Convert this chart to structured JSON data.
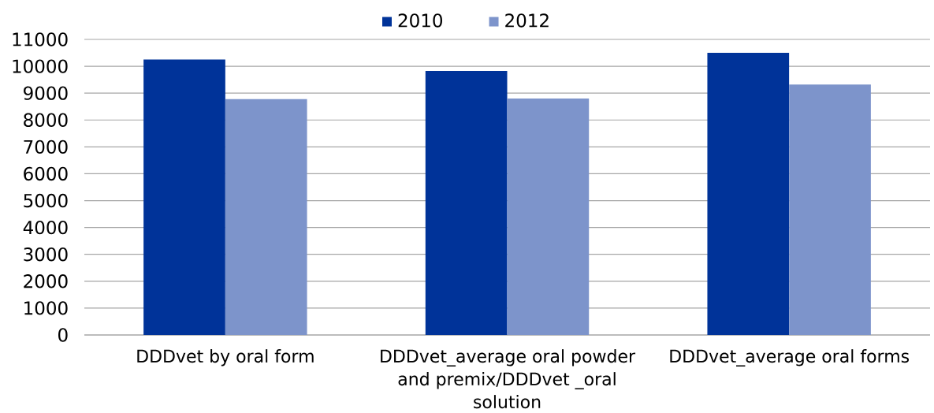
{
  "chart_data": {
    "type": "bar",
    "categories": [
      "DDDvet by oral form",
      "DDDvet_average oral powder and premix/DDDvet _oral solution",
      "DDDvet_average oral forms"
    ],
    "series": [
      {
        "name": "2010",
        "color": "#003399",
        "values": [
          10250,
          9830,
          10500
        ]
      },
      {
        "name": "2012",
        "color": "#7d94cb",
        "values": [
          8780,
          8800,
          9320
        ]
      }
    ],
    "ylim": [
      0,
      11000
    ],
    "yticks": [
      0,
      1000,
      2000,
      3000,
      4000,
      5000,
      6000,
      7000,
      8000,
      9000,
      10000,
      11000
    ],
    "grid": "y",
    "legend": "top"
  }
}
